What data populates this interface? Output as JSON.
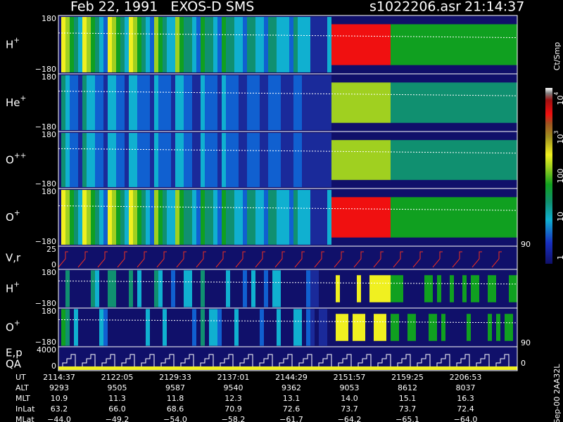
{
  "header": {
    "title": "Feb 22, 1991   EXOS-D SMS",
    "file": "s1022206.asr",
    "time": "21:14:37"
  },
  "panels": [
    {
      "label": "H",
      "sup": "+",
      "top": "180",
      "bottom": "−180"
    },
    {
      "label": "He",
      "sup": "+",
      "top": "180",
      "bottom": "−180"
    },
    {
      "label": "O",
      "sup": "++",
      "top": "180",
      "bottom": "−180"
    },
    {
      "label": "O",
      "sup": "+",
      "top": "180",
      "bottom": "−180"
    },
    {
      "label": "V,r",
      "top": "25",
      "bottom": "0"
    },
    {
      "label": "H",
      "sup": "+",
      "top": "180",
      "bottom": "−180"
    },
    {
      "label": "O",
      "sup": "+",
      "top": "180",
      "bottom": "−180"
    },
    {
      "label": "E,p",
      "label2": "QA",
      "top": "4000",
      "bottom": "0"
    }
  ],
  "right_labels": [
    "90",
    "90",
    "0"
  ],
  "colorbar": {
    "unit": "Ct/Smp",
    "ticks": [
      {
        "text": "10",
        "sup": "4"
      },
      {
        "text": "10",
        "sup": "3"
      },
      {
        "text": "100"
      },
      {
        "text": "10"
      },
      {
        "text": "1"
      }
    ]
  },
  "footer": {
    "rows": [
      {
        "label": "UT",
        "values": [
          "2114:37",
          "2122:05",
          "2129:33",
          "2137:01",
          "2144:29",
          "2151:57",
          "2159:25",
          "2206:53"
        ]
      },
      {
        "label": "ALT",
        "values": [
          "9293",
          "9505",
          "9587",
          "9540",
          "9362",
          "9053",
          "8612",
          "8037"
        ]
      },
      {
        "label": "MLT",
        "values": [
          "10.9",
          "11.3",
          "11.8",
          "12.3",
          "13.1",
          "14.0",
          "15.1",
          "16.3"
        ]
      },
      {
        "label": "InLat",
        "values": [
          "63.2",
          "66.0",
          "68.6",
          "70.9",
          "72.6",
          "73.7",
          "73.7",
          "72.4"
        ]
      },
      {
        "label": "MLat",
        "values": [
          "−44.0",
          "−49.2",
          "−54.0",
          "−58.2",
          "−61.7",
          "−64.2",
          "−65.1",
          "−64.0"
        ]
      }
    ]
  },
  "stamp": "Sep-00 2AA32L"
}
